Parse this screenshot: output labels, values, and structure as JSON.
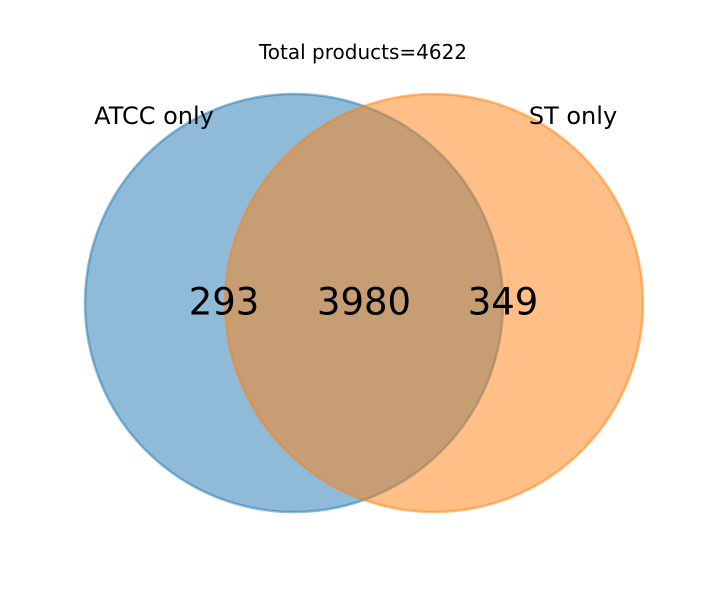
{
  "chart_data": {
    "type": "venn",
    "title": "Total products=4622",
    "sets": [
      {
        "label": "ATCC only",
        "color": "#1f77b4"
      },
      {
        "label": "ST only",
        "color": "#ff7f0e"
      }
    ],
    "regions": [
      {
        "region": "left_only",
        "value": 293
      },
      {
        "region": "intersection",
        "value": 3980
      },
      {
        "region": "right_only",
        "value": 349
      }
    ],
    "overlap_color": "#c69c6d"
  }
}
